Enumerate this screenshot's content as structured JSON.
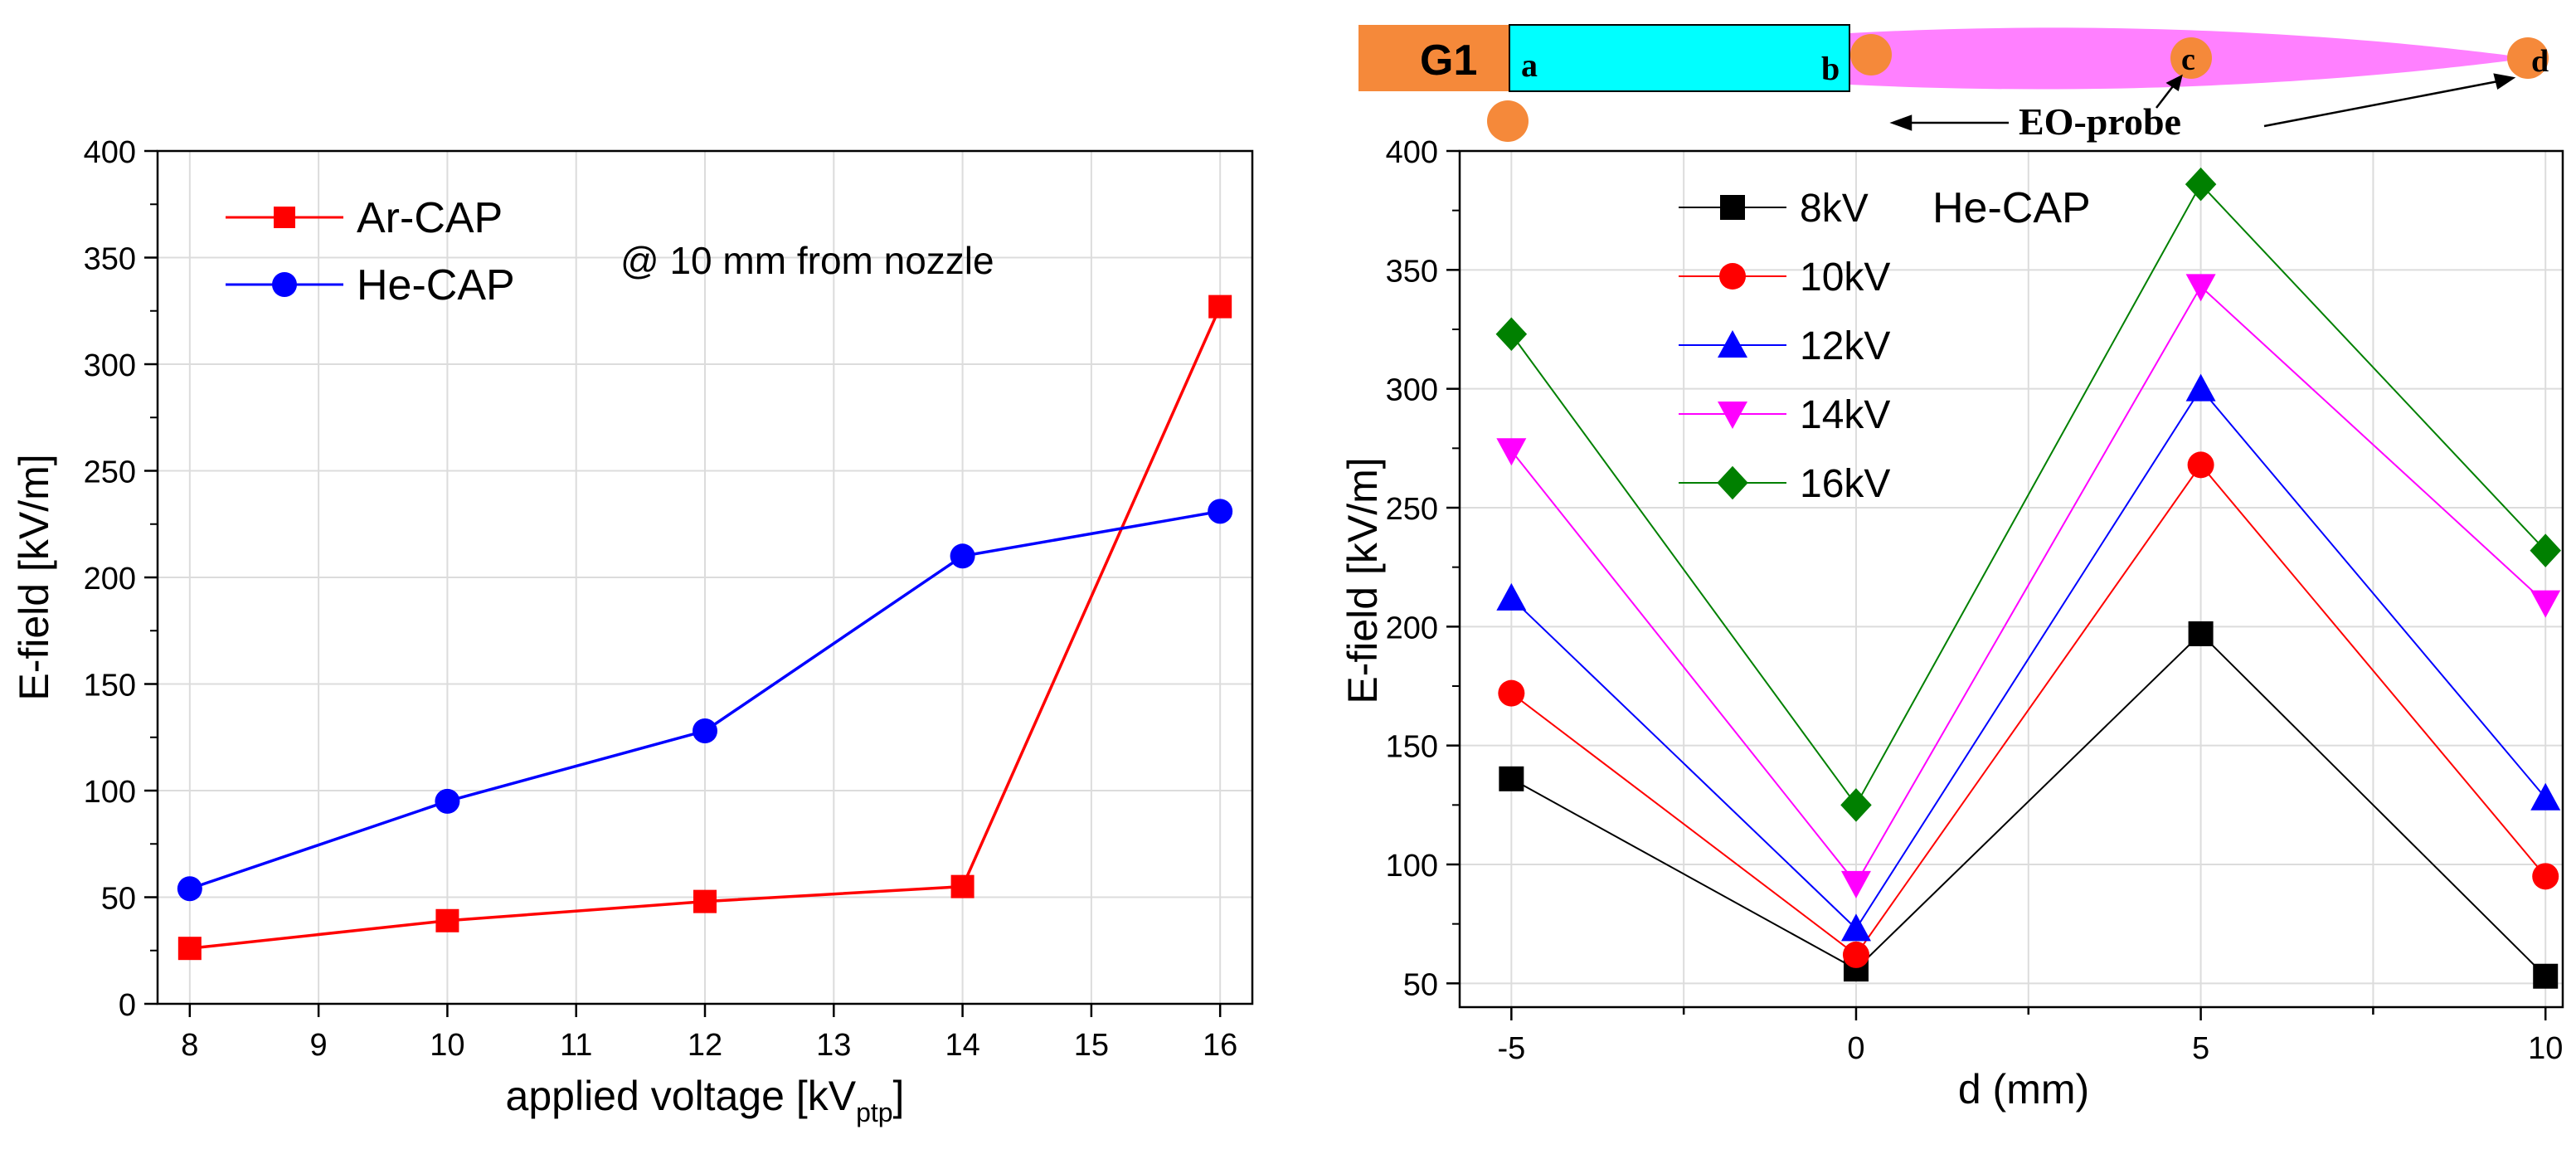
{
  "chart_data": [
    {
      "type": "line",
      "title": "",
      "annotation": "@ 10 mm from nozzle",
      "xlabel": "applied voltage [kV",
      "xlabel_sub": "ptp",
      "xlabel_end": "]",
      "ylabel": "E-field [kV/m]",
      "xlim": [
        7.75,
        16.25
      ],
      "ylim": [
        0,
        400
      ],
      "xticks": [
        "8",
        "9",
        "10",
        "11",
        "12",
        "13",
        "14",
        "15",
        "16"
      ],
      "yticks": [
        "0",
        "50",
        "100",
        "150",
        "200",
        "250",
        "300",
        "350",
        "400"
      ],
      "grid": true,
      "legend_position": "top-left",
      "series": [
        {
          "name": "Ar-CAP",
          "color": "#ff0000",
          "marker": "square",
          "x": [
            8,
            10,
            12,
            14,
            16
          ],
          "y": [
            26,
            39,
            48,
            55,
            327
          ]
        },
        {
          "name": "He-CAP",
          "color": "#0000ff",
          "marker": "circle",
          "x": [
            8,
            10,
            12,
            14,
            16
          ],
          "y": [
            54,
            95,
            128,
            210,
            231
          ]
        }
      ]
    },
    {
      "type": "line",
      "title": "He-CAP",
      "xlabel": "d (mm)",
      "ylabel": "E-field [kV/m]",
      "xlim": [
        -5.75,
        10.25
      ],
      "ylim": [
        40,
        400
      ],
      "xticks": [
        "-5",
        "0",
        "5",
        "10"
      ],
      "yticks": [
        "50",
        "100",
        "150",
        "200",
        "250",
        "300",
        "350",
        "400"
      ],
      "grid": true,
      "legend_position": "top-left",
      "series": [
        {
          "name": "8kV",
          "color": "#000000",
          "marker": "square",
          "x": [
            -5,
            0,
            5,
            10
          ],
          "y": [
            136,
            56,
            197,
            53
          ]
        },
        {
          "name": "10kV",
          "color": "#ff0000",
          "marker": "circle",
          "x": [
            -5,
            0,
            5,
            10
          ],
          "y": [
            172,
            62,
            268,
            95
          ]
        },
        {
          "name": "12kV",
          "color": "#0000ff",
          "marker": "triangle-up",
          "x": [
            -5,
            0,
            5,
            10
          ],
          "y": [
            212,
            73,
            300,
            128
          ]
        },
        {
          "name": "14kV",
          "color": "#ff00ff",
          "marker": "triangle-down",
          "x": [
            -5,
            0,
            5,
            10
          ],
          "y": [
            274,
            92,
            343,
            210
          ]
        },
        {
          "name": "16kV",
          "color": "#008000",
          "marker": "diamond",
          "x": [
            -5,
            0,
            5,
            10
          ],
          "y": [
            323,
            125,
            386,
            232
          ]
        }
      ]
    }
  ],
  "schematic": {
    "electrode_label": "G1",
    "point_labels": [
      "a",
      "b",
      "c",
      "d"
    ],
    "probe_label": "EO-probe",
    "colors": {
      "electrode": "#f5893a",
      "tube": "#00ffff",
      "plume": "#ff80ff",
      "probe": "#f5893a"
    }
  }
}
